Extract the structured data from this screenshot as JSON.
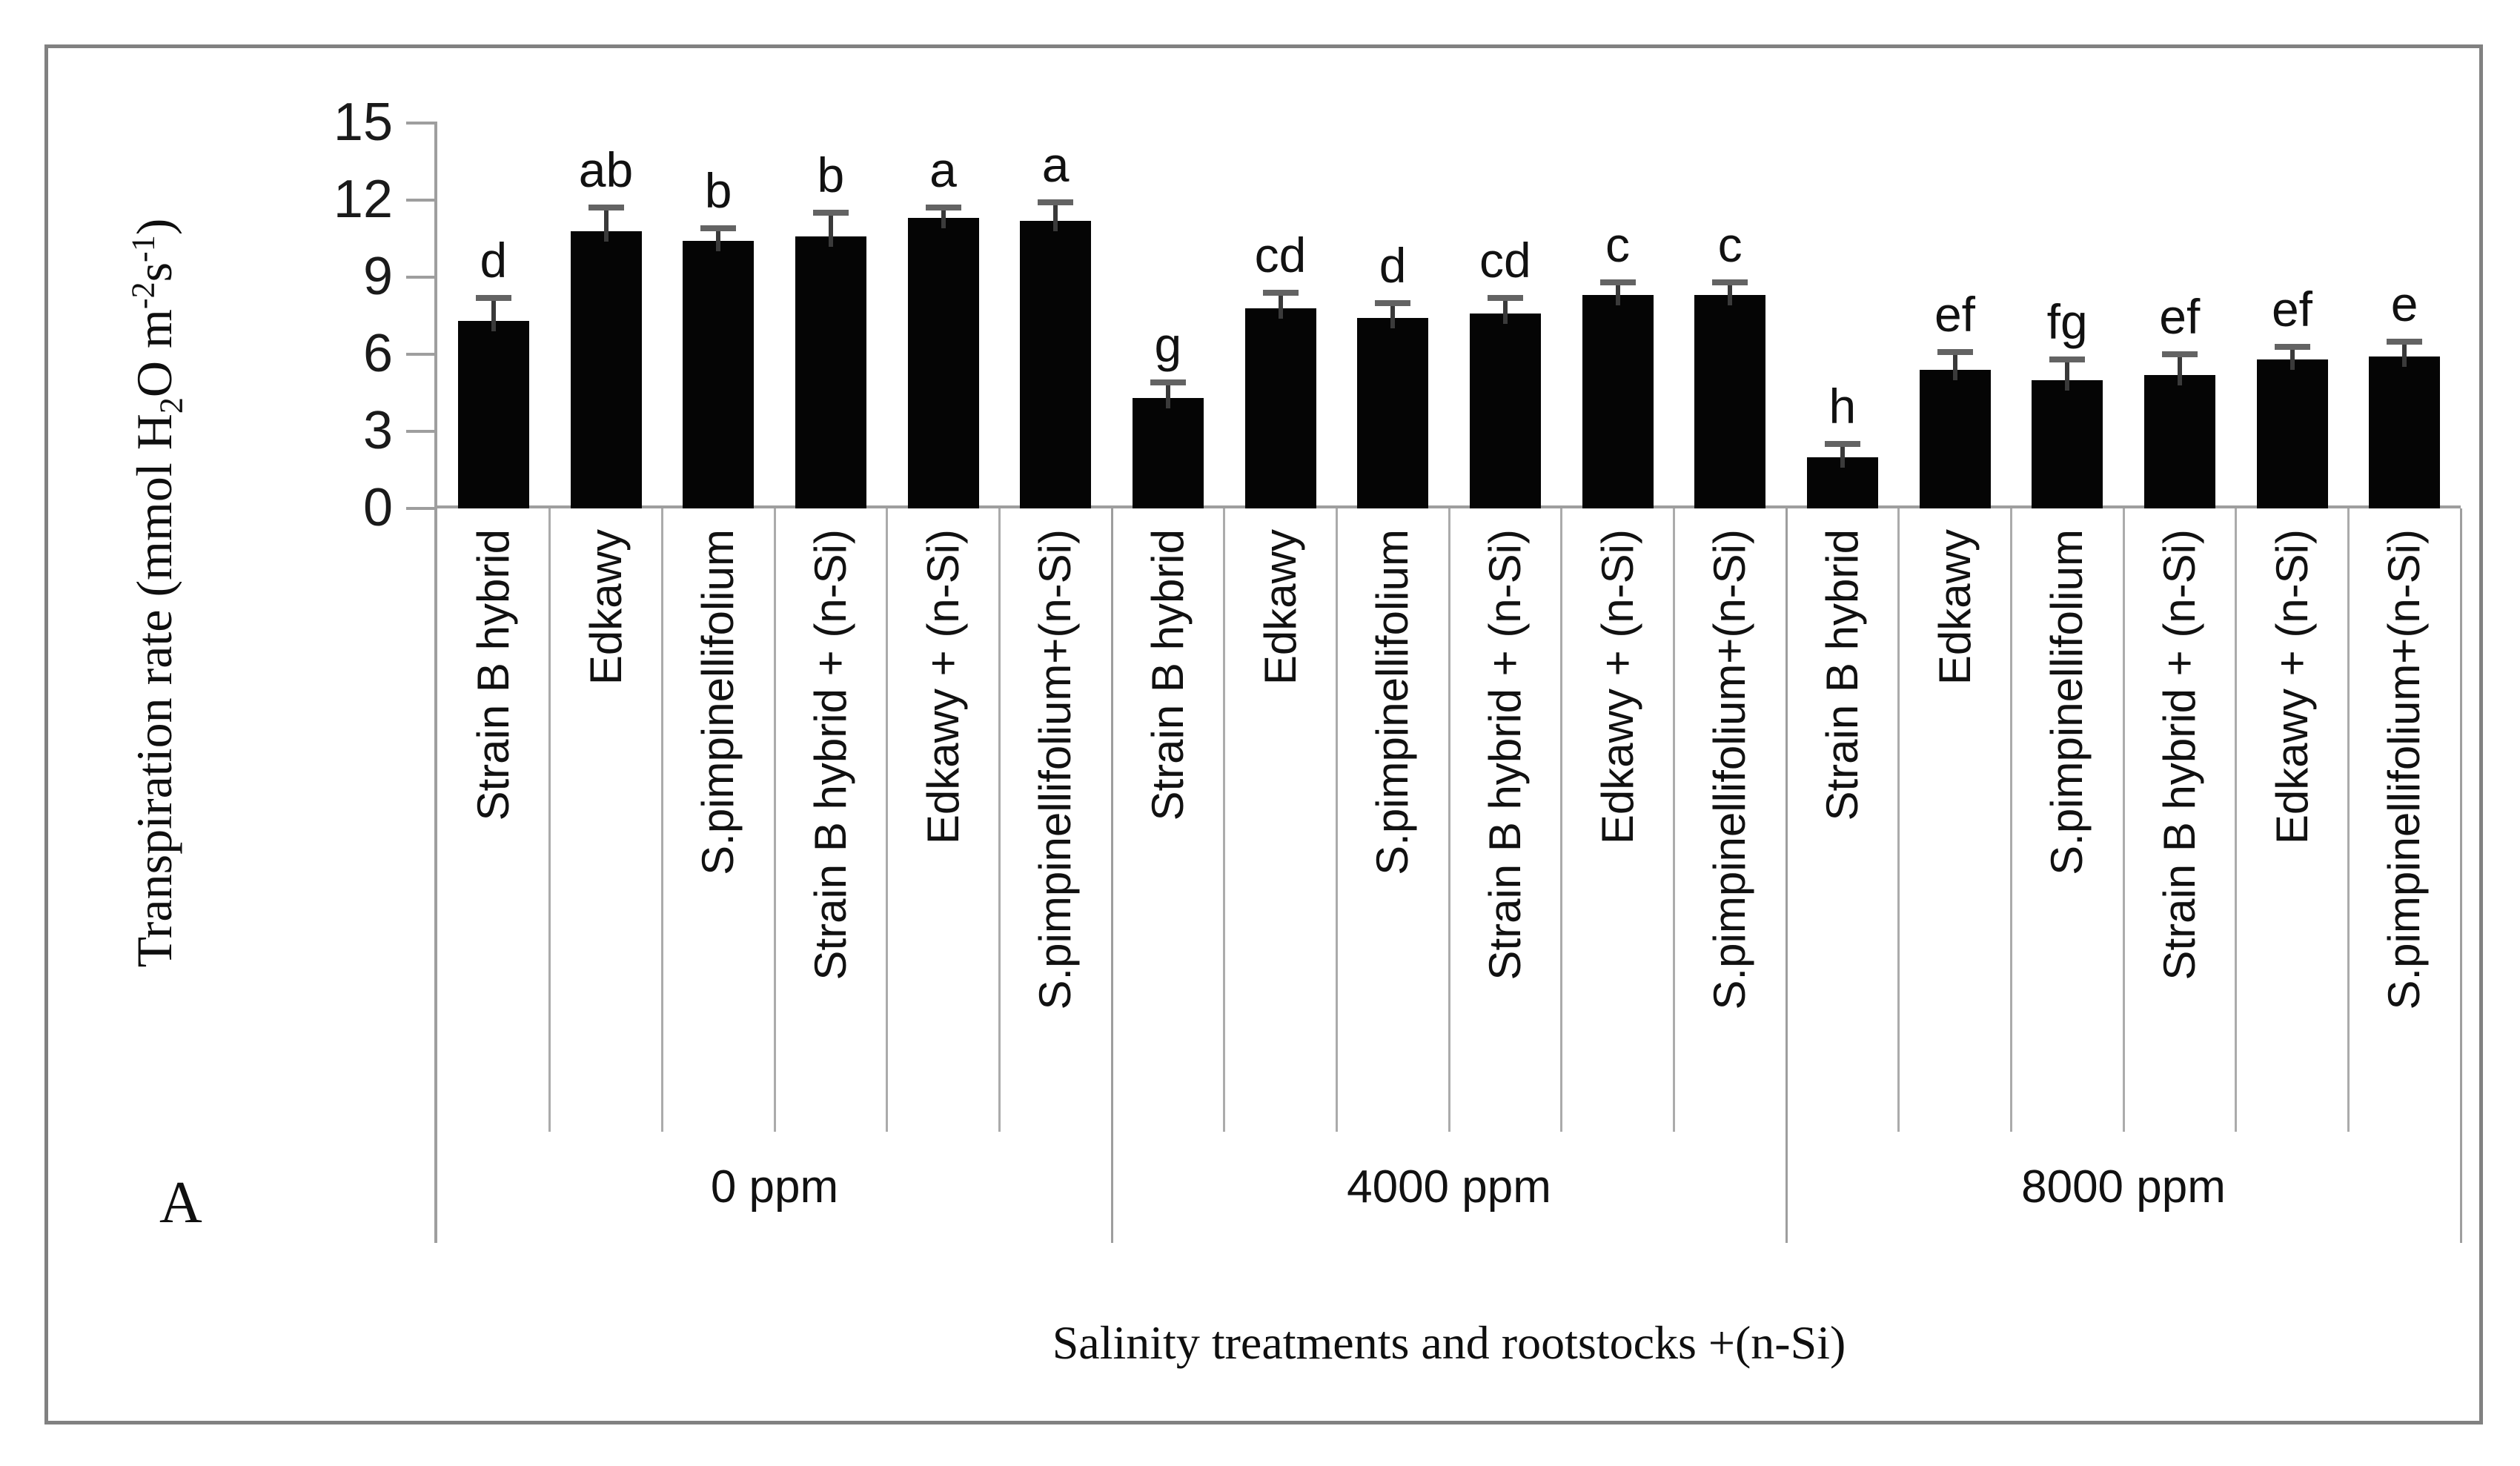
{
  "figure": {
    "panel_label": "A",
    "x_axis_title": "Salinity treatments and rootstocks +(n-Si)",
    "y_axis_title_plain": "Transpiration rate (mmol H2O m-2s-1)",
    "y_axis_title": {
      "pre": "Transpiration rate (mmol H",
      "sub": "2",
      "mid": "O m",
      "sup1": "-2",
      "mid2": "s",
      "sup2": "-1",
      "post": ")"
    }
  },
  "colors": {
    "bar": "#050505",
    "axis": "#9e9e9e",
    "separator": "#ababab",
    "error_stem": "#3a3a3a",
    "error_cap": "#636363",
    "border": "#818181",
    "text": "#111111",
    "background": "#ffffff"
  },
  "chart_data": {
    "type": "bar",
    "title": "",
    "xlabel": "Salinity treatments and rootstocks +(n-Si)",
    "ylabel": "Transpiration rate (mmol H2O m-2s-1)",
    "ylim": [
      0,
      15
    ],
    "y_ticks": [
      15,
      12,
      9,
      6,
      3,
      0
    ],
    "grid": false,
    "legend_position": "none",
    "error_bars": true,
    "categories": [
      "Strain B hybrid",
      "Edkawy",
      "S.pimpinellifolium",
      "Strain B hybrid  + (n-Si)",
      "Edkawy + (n-Si)",
      "S.pimpinellifolium+(n-Si)"
    ],
    "groups": [
      {
        "label": "0 ppm",
        "values": [
          7.3,
          10.8,
          10.4,
          10.6,
          11.3,
          11.2
        ],
        "errors": [
          0.9,
          0.9,
          0.5,
          0.9,
          0.4,
          0.7
        ],
        "letters": [
          "d",
          "ab",
          "b",
          "b",
          "a",
          "a"
        ]
      },
      {
        "label": "4000 ppm",
        "values": [
          4.3,
          7.8,
          7.4,
          7.6,
          8.3,
          8.3
        ],
        "errors": [
          0.6,
          0.6,
          0.6,
          0.6,
          0.5,
          0.5
        ],
        "letters": [
          "g",
          "cd",
          "d",
          "cd",
          "c",
          "c"
        ]
      },
      {
        "label": "8000 ppm",
        "values": [
          2.0,
          5.4,
          5.0,
          5.2,
          5.8,
          5.9
        ],
        "errors": [
          0.5,
          0.7,
          0.8,
          0.8,
          0.5,
          0.6
        ],
        "letters": [
          "h",
          "ef",
          "fg",
          "ef",
          "ef",
          "e"
        ]
      }
    ]
  }
}
